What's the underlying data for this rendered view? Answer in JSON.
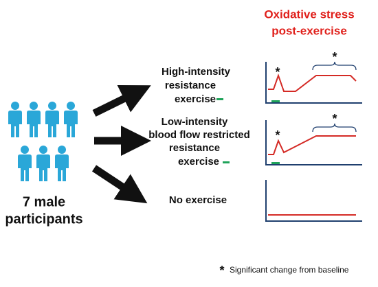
{
  "header": {
    "title_lines": [
      "Oxidative stress",
      "post-exercise"
    ]
  },
  "participants": {
    "label_lines": [
      "7 male",
      "participants"
    ]
  },
  "conditions": [
    {
      "label_lines": [
        "High-intensity",
        "resistance",
        "exercise"
      ]
    },
    {
      "label_lines": [
        "Low-intensity",
        "blood flow restricted",
        "resistance",
        "exercise"
      ]
    },
    {
      "label_lines": [
        "No exercise"
      ]
    }
  ],
  "significance_marker": "*",
  "footnote": {
    "marker": "*",
    "text": "Significant change from baseline"
  }
}
